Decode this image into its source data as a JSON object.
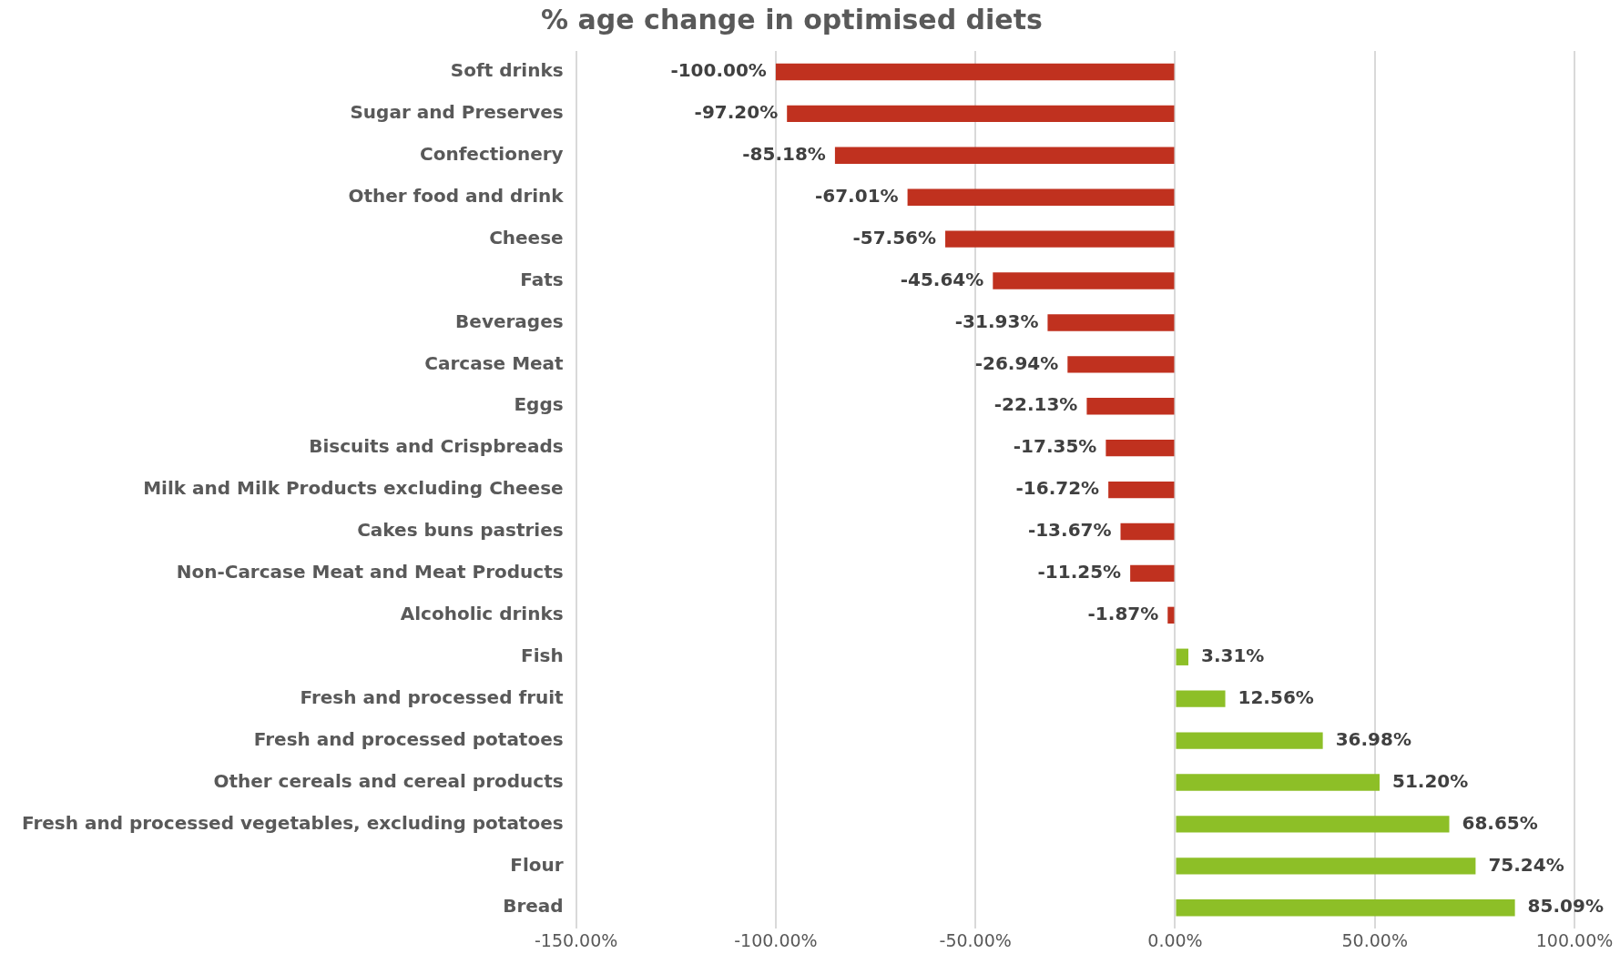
{
  "chart_data": {
    "type": "bar",
    "orientation": "horizontal",
    "title": "% age change in optimised diets",
    "categories": [
      "Soft drinks",
      "Sugar and Preserves",
      "Confectionery",
      "Other food and drink",
      "Cheese",
      "Fats",
      "Beverages",
      "Carcase Meat",
      "Eggs",
      "Biscuits and Crispbreads",
      "Milk and Milk Products excluding Cheese",
      "Cakes buns pastries",
      "Non-Carcase Meat and Meat Products",
      "Alcoholic drinks",
      "Fish",
      "Fresh and processed fruit",
      "Fresh and processed potatoes",
      "Other cereals and cereal products",
      "Fresh and processed vegetables, excluding potatoes",
      "Flour",
      "Bread"
    ],
    "values": [
      -100,
      -97.2,
      -85.18,
      -67.01,
      -57.56,
      -45.64,
      -31.93,
      -26.94,
      -22.13,
      -17.35,
      -16.72,
      -13.67,
      -11.25,
      -1.87,
      3.31,
      12.56,
      36.98,
      51.2,
      68.65,
      75.24,
      85.09
    ],
    "value_labels": [
      "-100.00%",
      "-97.20%",
      "-85.18%",
      "-67.01%",
      "-57.56%",
      "-45.64%",
      "-31.93%",
      "-26.94%",
      "-22.13%",
      "-17.35%",
      "-16.72%",
      "-13.67%",
      "-11.25%",
      "-1.87%",
      "3.31%",
      "12.56%",
      "36.98%",
      "51.20%",
      "68.65%",
      "75.24%",
      "85.09%"
    ],
    "colors": [
      "#c0311f",
      "#c0311f",
      "#c0311f",
      "#c0311f",
      "#c0311f",
      "#c0311f",
      "#c0311f",
      "#c0311f",
      "#c0311f",
      "#c0311f",
      "#c0311f",
      "#c0311f",
      "#c0311f",
      "#c0311f",
      "#8dbf27",
      "#8dbf27",
      "#8dbf27",
      "#8dbf27",
      "#8dbf27",
      "#8dbf27",
      "#8dbf27"
    ],
    "xlim": [
      -150,
      100
    ],
    "xticks": [
      {
        "value": -150,
        "label": "-150.00%"
      },
      {
        "value": -100,
        "label": "-100.00%"
      },
      {
        "value": -50,
        "label": "-50.00%"
      },
      {
        "value": 0,
        "label": "0.00%"
      },
      {
        "value": 50,
        "label": "50.00%"
      },
      {
        "value": 100,
        "label": "100.00%"
      }
    ],
    "grid": "x",
    "legend": false
  }
}
